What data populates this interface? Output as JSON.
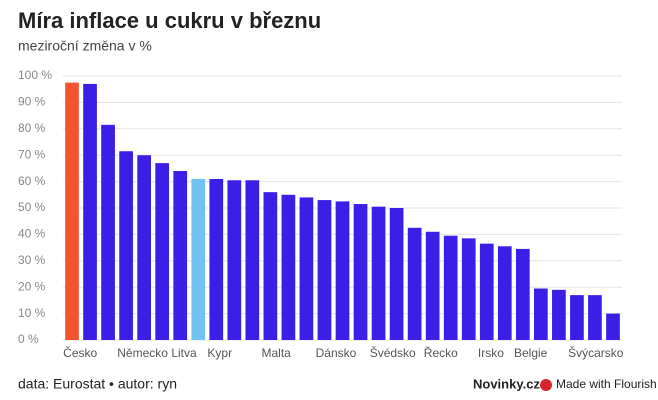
{
  "chart_data": {
    "type": "bar",
    "title": "Míra inflace u cukru v březnu",
    "subtitle": "meziroční změna v %",
    "categories": [
      "Česko",
      null,
      null,
      "Německo",
      null,
      null,
      "Litva",
      null,
      "Kypr",
      null,
      null,
      "Malta",
      null,
      null,
      "Dánsko",
      null,
      null,
      "Švédsko",
      null,
      null,
      "Řecko",
      null,
      null,
      "Irsko",
      null,
      "Belgie",
      null,
      null,
      "Švýcarsko",
      null,
      null
    ],
    "values": [
      97.5,
      97,
      81.5,
      71.5,
      70,
      67,
      64,
      61,
      61,
      60.5,
      60.5,
      56,
      55,
      54,
      53,
      52.5,
      51.5,
      50.5,
      50,
      42.5,
      41,
      39.5,
      38.5,
      36.5,
      35.5,
      34.5,
      19.5,
      19,
      17,
      17,
      10
    ],
    "colors": [
      "#f4532d",
      "#3c1fe6",
      "#3c1fe6",
      "#3c1fe6",
      "#3c1fe6",
      "#3c1fe6",
      "#3c1fe6",
      "#6ec3f2",
      "#3c1fe6",
      "#3c1fe6",
      "#3c1fe6",
      "#3c1fe6",
      "#3c1fe6",
      "#3c1fe6",
      "#3c1fe6",
      "#3c1fe6",
      "#3c1fe6",
      "#3c1fe6",
      "#3c1fe6",
      "#3c1fe6",
      "#3c1fe6",
      "#3c1fe6",
      "#3c1fe6",
      "#3c1fe6",
      "#3c1fe6",
      "#3c1fe6",
      "#3c1fe6",
      "#3c1fe6",
      "#3c1fe6",
      "#3c1fe6",
      "#3c1fe6"
    ],
    "ylim": [
      0,
      100
    ],
    "yticks": [
      {
        "value": 0,
        "label": "0 %"
      },
      {
        "value": 10,
        "label": "10 %"
      },
      {
        "value": 20,
        "label": "20 %"
      },
      {
        "value": 30,
        "label": "30 %"
      },
      {
        "value": 40,
        "label": "40 %"
      },
      {
        "value": 50,
        "label": "50 %"
      },
      {
        "value": 60,
        "label": "60 %"
      },
      {
        "value": 70,
        "label": "70 %"
      },
      {
        "value": 80,
        "label": "80 %"
      },
      {
        "value": 90,
        "label": "90 %"
      },
      {
        "value": 100,
        "label": "100 %"
      }
    ],
    "grid": true,
    "source": "data: Eurostat • autor: ryn",
    "brand": "Novinky.cz",
    "credit": "Made with Flourish"
  }
}
